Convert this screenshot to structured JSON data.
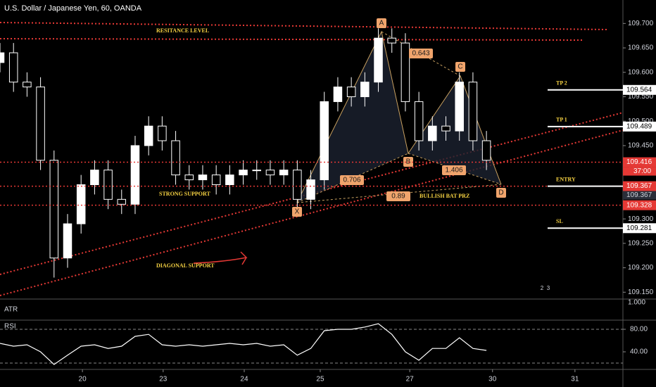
{
  "chart_data": {
    "type": "candlestick",
    "title": "U.S. Dollar / Japanese Yen, 60, OANDA",
    "x": [
      0,
      4,
      8,
      12,
      16,
      20,
      24,
      28,
      32,
      36,
      40,
      44,
      48,
      52,
      56,
      60,
      64,
      68,
      72,
      76,
      80,
      84,
      88,
      92,
      96,
      100,
      104,
      108,
      112,
      116,
      120,
      124,
      128,
      132,
      136,
      140,
      144
    ],
    "open": [
      109.62,
      109.64,
      109.58,
      109.57,
      109.42,
      109.22,
      109.29,
      109.37,
      109.4,
      109.34,
      109.33,
      109.45,
      109.49,
      109.46,
      109.39,
      109.38,
      109.39,
      109.37,
      109.39,
      109.4,
      109.4,
      109.39,
      109.4,
      109.34,
      109.38,
      109.54,
      109.57,
      109.55,
      109.58,
      109.67,
      109.66,
      109.54,
      109.46,
      109.49,
      109.48,
      109.58,
      109.46
    ],
    "high": [
      109.66,
      109.66,
      109.6,
      109.59,
      109.44,
      109.31,
      109.39,
      109.42,
      109.42,
      109.36,
      109.47,
      109.51,
      109.51,
      109.48,
      109.41,
      109.41,
      109.41,
      109.41,
      109.42,
      109.42,
      109.42,
      109.42,
      109.42,
      109.4,
      109.56,
      109.59,
      109.59,
      109.6,
      109.69,
      109.69,
      109.68,
      109.56,
      109.51,
      109.51,
      109.6,
      109.6,
      109.48
    ],
    "low": [
      109.6,
      109.56,
      109.55,
      109.4,
      109.18,
      109.2,
      109.27,
      109.35,
      109.32,
      109.31,
      109.31,
      109.43,
      109.44,
      109.37,
      109.36,
      109.36,
      109.35,
      109.35,
      109.37,
      109.38,
      109.37,
      109.37,
      109.32,
      109.32,
      109.36,
      109.52,
      109.53,
      109.53,
      109.56,
      109.64,
      109.52,
      109.44,
      109.44,
      109.46,
      109.46,
      109.44,
      109.4
    ],
    "close": [
      109.64,
      109.58,
      109.57,
      109.42,
      109.22,
      109.29,
      109.37,
      109.4,
      109.34,
      109.33,
      109.45,
      109.49,
      109.46,
      109.39,
      109.38,
      109.39,
      109.37,
      109.39,
      109.4,
      109.4,
      109.39,
      109.4,
      109.34,
      109.38,
      109.54,
      109.57,
      109.55,
      109.58,
      109.67,
      109.66,
      109.54,
      109.46,
      109.49,
      109.48,
      109.58,
      109.46,
      109.42
    ],
    "up_color": "#ffffff",
    "down_color": "#000000",
    "xlim": [
      0,
      184.4
    ],
    "ylim": [
      109.136,
      109.748
    ],
    "xticks": [
      {
        "value": 24.4,
        "label": "20"
      },
      {
        "value": 48.3,
        "label": "23"
      },
      {
        "value": 72.3,
        "label": "24"
      },
      {
        "value": 94.8,
        "label": "25"
      },
      {
        "value": 121.3,
        "label": "27"
      },
      {
        "value": 145.8,
        "label": "30"
      },
      {
        "value": 170.2,
        "label": "31"
      }
    ],
    "yticks": [
      {
        "value": 109.7,
        "label": "109.700"
      },
      {
        "value": 109.65,
        "label": "109.650"
      },
      {
        "value": 109.6,
        "label": "109.600"
      },
      {
        "value": 109.55,
        "label": "109.550"
      },
      {
        "value": 109.5,
        "label": "109.500"
      },
      {
        "value": 109.45,
        "label": "109.450"
      },
      {
        "value": 109.4,
        "label": "109.400"
      },
      {
        "value": 109.35,
        "label": "109.350"
      },
      {
        "value": 109.3,
        "label": "109.300"
      },
      {
        "value": 109.25,
        "label": "109.250"
      },
      {
        "value": 109.2,
        "label": "109.200"
      },
      {
        "value": 109.15,
        "label": "109.150"
      }
    ],
    "levels": [
      {
        "name": "TP 2",
        "value": 109.564,
        "style": "white"
      },
      {
        "name": "TP 1",
        "value": 109.489,
        "style": "white"
      },
      {
        "value": 109.416,
        "style": "red"
      },
      {
        "name": "ENTRY",
        "value": 109.367,
        "style": "red"
      },
      {
        "value": 109.328,
        "style": "red"
      },
      {
        "name": "SL",
        "value": 109.281,
        "style": "white"
      }
    ],
    "countdown": "37:00",
    "prev_close": 109.367,
    "annotations": {
      "resistance": "RESITANCE LEVEL",
      "support": "STRONG SUPPORT",
      "diagonal": "DIAGONAL SUPPORT",
      "prz": "BULLISH BAT PRZ"
    },
    "pattern_points": [
      "X",
      "A",
      "B",
      "C",
      "D"
    ],
    "ratios": [
      "0.643",
      "0.706",
      "1.406",
      "0.89"
    ],
    "event_badges": [
      "2",
      "3"
    ],
    "atr": {
      "name": "ATR",
      "yticks": [
        {
          "value": 1,
          "label": "1.000"
        }
      ]
    },
    "rsi": {
      "name": "RSI",
      "values": [
        55,
        50,
        52.5,
        40,
        17.5,
        34,
        50,
        52.5,
        46,
        50,
        67.5,
        71,
        52.5,
        50,
        52.5,
        50,
        52.5,
        55,
        52.5,
        55,
        50,
        52.5,
        34,
        46,
        77.5,
        80,
        80,
        84,
        90,
        71,
        40,
        25,
        46,
        46,
        65,
        46,
        42.5
      ],
      "ylim": [
        8.75,
        96.25
      ],
      "yticks": [
        {
          "value": 80,
          "label": "80.00"
        },
        {
          "value": 40,
          "label": "40.00"
        }
      ],
      "bands": [
        80,
        20
      ],
      "color": "#ffffff"
    }
  }
}
